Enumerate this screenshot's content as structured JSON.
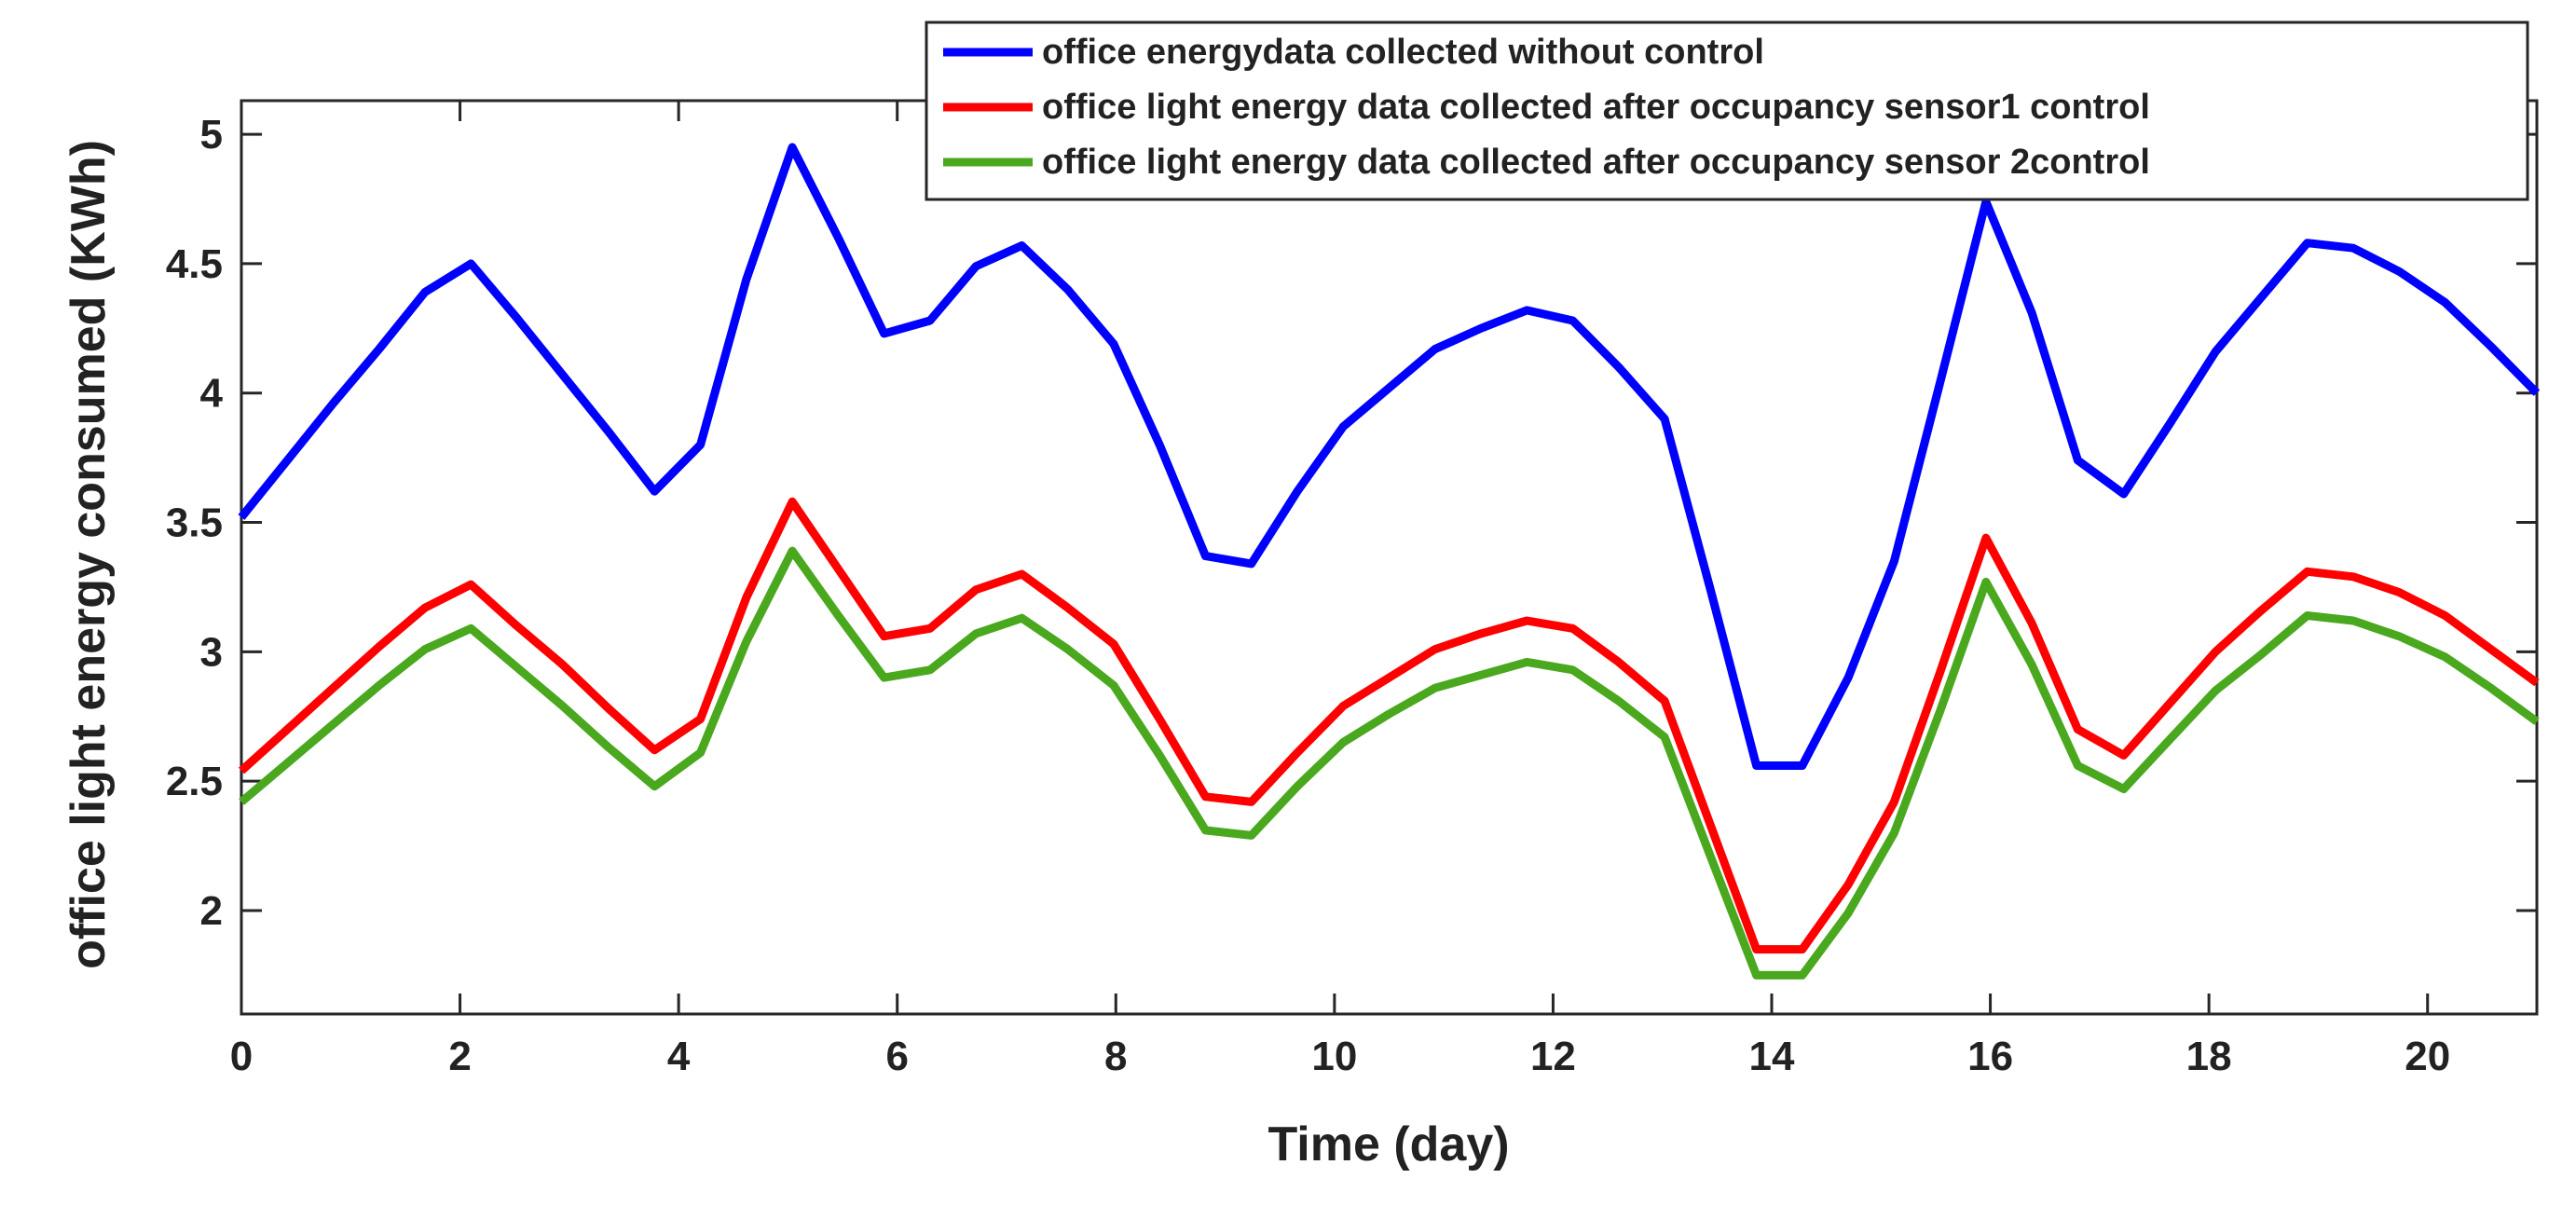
{
  "chart_data": {
    "type": "line",
    "title": "",
    "xlabel": "Time (day)",
    "ylabel": "office light energy consumed (KWh)",
    "xlim": [
      0,
      21
    ],
    "ylim": [
      1.6,
      5.13
    ],
    "xticks": [
      0,
      2,
      4,
      6,
      8,
      10,
      12,
      14,
      16,
      18,
      20
    ],
    "yticks": [
      2,
      2.5,
      3,
      3.5,
      4,
      4.5,
      5
    ],
    "xtick_labels": [
      "0",
      "2",
      "4",
      "6",
      "8",
      "10",
      "12",
      "14",
      "16",
      "18",
      "20"
    ],
    "ytick_labels": [
      "2",
      "2.5",
      "3",
      "3.5",
      "4",
      "4.5",
      "5"
    ],
    "grid": false,
    "legend_position": "top-right",
    "x": [
      0,
      0.42,
      0.84,
      1.26,
      1.68,
      2.1,
      2.52,
      2.94,
      3.36,
      3.78,
      4.2,
      4.62,
      5.04,
      5.46,
      5.88,
      6.3,
      6.72,
      7.14,
      7.56,
      7.98,
      8.4,
      8.82,
      9.24,
      9.66,
      10.08,
      10.5,
      10.92,
      11.34,
      11.76,
      12.18,
      12.6,
      13.02,
      13.44,
      13.86,
      14.28,
      14.7,
      15.12,
      15.54,
      15.96,
      16.38,
      16.8,
      17.22,
      17.64,
      18.06,
      18.48,
      18.9,
      19.32,
      19.74,
      20.16,
      20.58,
      21
    ],
    "series": [
      {
        "name": "office energydata collected without control",
        "color": "#0000ff",
        "values": [
          3.52,
          3.74,
          3.96,
          4.17,
          4.39,
          4.5,
          4.29,
          4.07,
          3.85,
          3.62,
          3.8,
          4.44,
          4.95,
          4.6,
          4.23,
          4.28,
          4.49,
          4.57,
          4.4,
          4.19,
          3.8,
          3.37,
          3.34,
          3.62,
          3.87,
          4.02,
          4.17,
          4.25,
          4.32,
          4.28,
          4.1,
          3.9,
          3.24,
          2.56,
          2.56,
          2.9,
          3.35,
          4.04,
          4.74,
          4.31,
          3.74,
          3.61,
          3.88,
          4.16,
          4.37,
          4.58,
          4.56,
          4.47,
          4.35,
          4.18,
          4.0
        ]
      },
      {
        "name": "office light energy data collected after occupancy sensor1 control",
        "color": "#ff0000",
        "values": [
          2.54,
          2.7,
          2.86,
          3.02,
          3.17,
          3.26,
          3.1,
          2.95,
          2.78,
          2.62,
          2.74,
          3.21,
          3.58,
          3.32,
          3.06,
          3.09,
          3.24,
          3.3,
          3.17,
          3.03,
          2.74,
          2.44,
          2.42,
          2.61,
          2.79,
          2.9,
          3.01,
          3.07,
          3.12,
          3.09,
          2.96,
          2.81,
          2.33,
          1.85,
          1.85,
          2.1,
          2.42,
          2.92,
          3.44,
          3.11,
          2.7,
          2.6,
          2.8,
          3.0,
          3.16,
          3.31,
          3.29,
          3.23,
          3.14,
          3.01,
          2.88
        ]
      },
      {
        "name": "office light energy data collected after occupancy sensor 2control",
        "color": "#4aa81e",
        "values": [
          2.42,
          2.57,
          2.72,
          2.87,
          3.01,
          3.09,
          2.94,
          2.79,
          2.63,
          2.48,
          2.61,
          3.04,
          3.39,
          3.14,
          2.9,
          2.93,
          3.07,
          3.13,
          3.01,
          2.87,
          2.6,
          2.31,
          2.29,
          2.48,
          2.65,
          2.76,
          2.86,
          2.91,
          2.96,
          2.93,
          2.81,
          2.67,
          2.21,
          1.75,
          1.75,
          1.99,
          2.3,
          2.77,
          3.27,
          2.95,
          2.56,
          2.47,
          2.66,
          2.85,
          2.99,
          3.14,
          3.12,
          3.06,
          2.98,
          2.86,
          2.73
        ]
      }
    ]
  }
}
